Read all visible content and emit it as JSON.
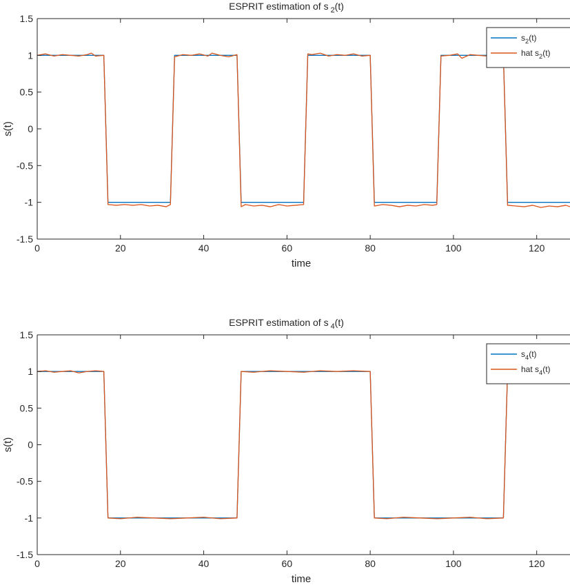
{
  "chart_data": [
    {
      "type": "line",
      "title": "ESPRIT estimation of s",
      "title_sub": "2",
      "title_tail": "(t)",
      "xlabel": "time",
      "ylabel": "s(t)",
      "xlim": [
        0,
        128
      ],
      "ylim": [
        -1.5,
        1.5
      ],
      "xticks": [
        0,
        20,
        40,
        60,
        80,
        100,
        120
      ],
      "yticks": [
        1.5,
        1,
        0.5,
        0,
        -0.5,
        -1,
        -1.5
      ],
      "grid": false,
      "legend_position": "top-right",
      "series": [
        {
          "name": "s2(t)",
          "label_main": "s",
          "label_sub": "2",
          "label_tail": "(t)",
          "color": "#0072BD",
          "x": [
            0,
            16,
            17,
            32,
            33,
            48,
            49,
            64,
            65,
            80,
            81,
            96,
            97,
            112,
            113,
            128
          ],
          "y": [
            1,
            1,
            -1,
            -1,
            1,
            1,
            -1,
            -1,
            1,
            1,
            -1,
            -1,
            1,
            1,
            -1,
            -1
          ]
        },
        {
          "name": "hat s2(t)",
          "label_main": "hat s",
          "label_sub": "2",
          "label_tail": "(t)",
          "color": "#D95319",
          "x": [
            0,
            2,
            4,
            6,
            8,
            10,
            12,
            13,
            14,
            16,
            17,
            19,
            21,
            23,
            25,
            27,
            29,
            31,
            32,
            33,
            35,
            37,
            39,
            41,
            42,
            44,
            46,
            48,
            49,
            50,
            52,
            54,
            56,
            58,
            60,
            62,
            64,
            65,
            66,
            68,
            70,
            72,
            74,
            76,
            78,
            80,
            81,
            83,
            85,
            87,
            89,
            91,
            93,
            95,
            96,
            97,
            99,
            101,
            102,
            104,
            106,
            108,
            110,
            112,
            113,
            115,
            117,
            119,
            121,
            123,
            125,
            127,
            128
          ],
          "y": [
            1.0,
            1.02,
            0.99,
            1.01,
            1.0,
            0.99,
            1.01,
            1.03,
            0.99,
            1.0,
            -1.03,
            -1.04,
            -1.03,
            -1.04,
            -1.03,
            -1.05,
            -1.04,
            -1.06,
            -1.03,
            0.98,
            1.01,
            1.0,
            1.02,
            0.99,
            1.03,
            1.0,
            0.98,
            1.01,
            -1.06,
            -1.03,
            -1.05,
            -1.04,
            -1.06,
            -1.03,
            -1.05,
            -1.04,
            -1.03,
            1.02,
            1.01,
            1.03,
            0.99,
            1.01,
            1.0,
            1.02,
            0.99,
            1.0,
            -1.05,
            -1.03,
            -1.04,
            -1.06,
            -1.04,
            -1.05,
            -1.03,
            -1.04,
            -1.03,
            0.99,
            1.0,
            1.02,
            0.96,
            1.01,
            1.0,
            0.99,
            1.01,
            1.0,
            -1.04,
            -1.05,
            -1.06,
            -1.04,
            -1.07,
            -1.05,
            -1.06,
            -1.04,
            -1.06
          ]
        }
      ]
    },
    {
      "type": "line",
      "title": "ESPRIT estimation of s",
      "title_sub": "4",
      "title_tail": "(t)",
      "xlabel": "time",
      "ylabel": "s(t)",
      "xlim": [
        0,
        128
      ],
      "ylim": [
        -1.5,
        1.5
      ],
      "xticks": [
        0,
        20,
        40,
        60,
        80,
        100,
        120
      ],
      "yticks": [
        1.5,
        1,
        0.5,
        0,
        -0.5,
        -1,
        -1.5
      ],
      "grid": false,
      "legend_position": "top-right",
      "series": [
        {
          "name": "s4(t)",
          "label_main": "s",
          "label_sub": "4",
          "label_tail": "(t)",
          "color": "#0072BD",
          "x": [
            0,
            16,
            17,
            48,
            49,
            80,
            81,
            112,
            113,
            128
          ],
          "y": [
            1,
            1,
            -1,
            -1,
            1,
            1,
            -1,
            -1,
            1,
            1
          ]
        },
        {
          "name": "hat s4(t)",
          "label_main": "hat s",
          "label_sub": "4",
          "label_tail": "(t)",
          "color": "#D95319",
          "x": [
            0,
            2,
            4,
            6,
            8,
            10,
            12,
            14,
            16,
            17,
            20,
            24,
            28,
            32,
            36,
            40,
            44,
            48,
            49,
            52,
            56,
            60,
            64,
            68,
            72,
            76,
            80,
            81,
            84,
            88,
            92,
            96,
            100,
            104,
            108,
            112,
            113,
            116,
            120,
            124,
            128
          ],
          "y": [
            1.0,
            1.01,
            0.99,
            1.0,
            1.01,
            0.98,
            1.0,
            1.01,
            1.0,
            -1.0,
            -1.01,
            -0.99,
            -1.0,
            -1.01,
            -1.0,
            -0.99,
            -1.01,
            -1.0,
            1.0,
            0.99,
            1.01,
            1.0,
            0.99,
            1.01,
            1.0,
            1.01,
            1.0,
            -1.0,
            -1.01,
            -0.99,
            -1.0,
            -1.01,
            -1.0,
            -0.99,
            -1.01,
            -1.0,
            1.0,
            1.01,
            0.99,
            1.0,
            1.0
          ]
        }
      ]
    }
  ]
}
